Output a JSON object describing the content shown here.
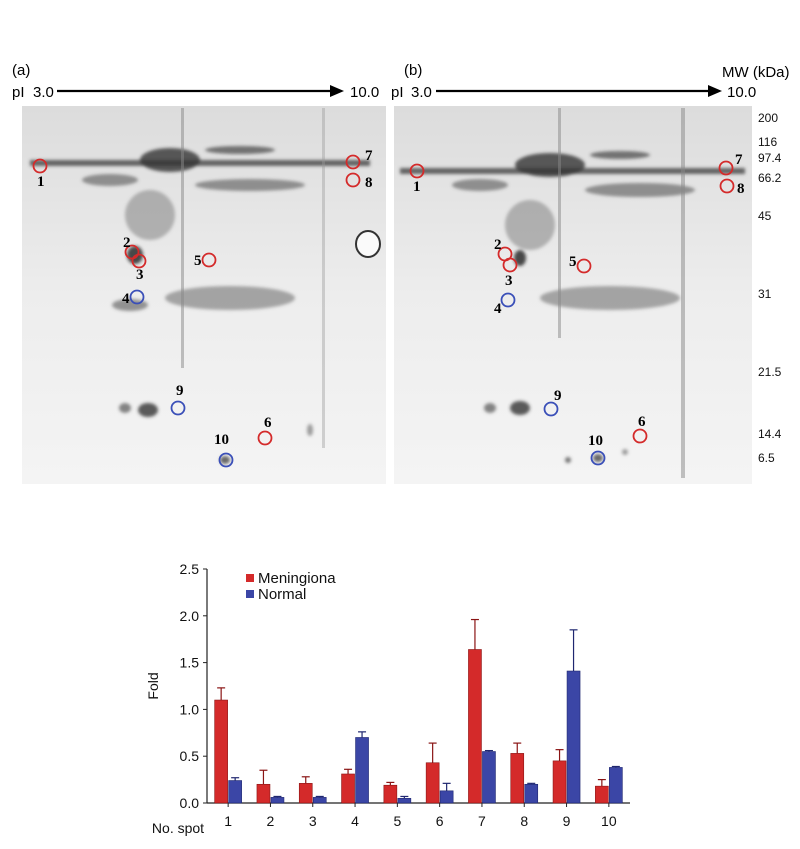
{
  "gels": {
    "panel_a": {
      "label": "(a)",
      "pi_prefix": "pI",
      "pi_start": "3.0",
      "pi_end": "10.0",
      "spots": [
        {
          "num": "1",
          "color": "red"
        },
        {
          "num": "2",
          "color": "red"
        },
        {
          "num": "3",
          "color": "red"
        },
        {
          "num": "4",
          "color": "blue"
        },
        {
          "num": "5",
          "color": "red"
        },
        {
          "num": "6",
          "color": "red"
        },
        {
          "num": "7",
          "color": "red"
        },
        {
          "num": "8",
          "color": "red"
        },
        {
          "num": "9",
          "color": "blue"
        },
        {
          "num": "10",
          "color": "blue"
        }
      ]
    },
    "panel_b": {
      "label": "(b)",
      "pi_prefix": "pI",
      "pi_start": "3.0",
      "pi_end": "10.0",
      "mw_title": "MW (kDa)",
      "mw_markers": [
        "200",
        "116",
        "97.4",
        "66.2",
        "45",
        "31",
        "21.5",
        "14.4",
        "6.5"
      ],
      "spots": [
        {
          "num": "1",
          "color": "red"
        },
        {
          "num": "2",
          "color": "red"
        },
        {
          "num": "3",
          "color": "red"
        },
        {
          "num": "4",
          "color": "blue"
        },
        {
          "num": "5",
          "color": "red"
        },
        {
          "num": "6",
          "color": "red"
        },
        {
          "num": "7",
          "color": "red"
        },
        {
          "num": "8",
          "color": "red"
        },
        {
          "num": "9",
          "color": "blue"
        },
        {
          "num": "10",
          "color": "blue"
        }
      ]
    }
  },
  "colors": {
    "red_circle": "#d42a2a",
    "blue_circle": "#3a4fb8",
    "meningioma": "#d42a2a",
    "normal": "#3b46a6"
  },
  "chart_data": {
    "type": "bar",
    "xlabel": "No. spot",
    "ylabel": "Fold",
    "ylim": [
      0,
      2.5
    ],
    "yticks": [
      "0.0",
      "0.5",
      "1.0",
      "1.5",
      "2.0",
      "2.5"
    ],
    "categories": [
      "1",
      "2",
      "3",
      "4",
      "5",
      "6",
      "7",
      "8",
      "9",
      "10"
    ],
    "legend_position": "top-left",
    "series": [
      {
        "name": "Meningiona",
        "values": [
          1.1,
          0.2,
          0.21,
          0.31,
          0.19,
          0.43,
          1.64,
          0.53,
          0.45,
          0.18
        ],
        "errors": [
          0.13,
          0.15,
          0.07,
          0.05,
          0.03,
          0.21,
          0.32,
          0.11,
          0.12,
          0.07
        ]
      },
      {
        "name": "Normal",
        "values": [
          0.24,
          0.06,
          0.06,
          0.7,
          0.05,
          0.13,
          0.55,
          0.2,
          1.41,
          0.38
        ],
        "errors": [
          0.03,
          0.01,
          0.01,
          0.06,
          0.02,
          0.08,
          0.01,
          0.01,
          0.44,
          0.01
        ]
      }
    ]
  }
}
